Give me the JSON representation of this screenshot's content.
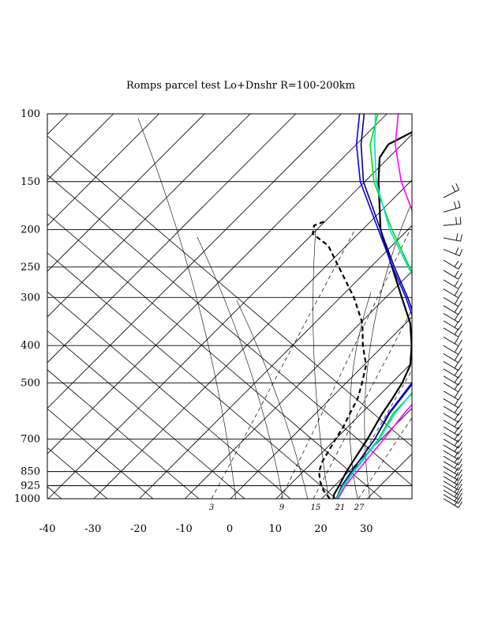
{
  "chart_data": {
    "type": "line",
    "title": "Romps parcel test Lo+Dnshr R=100-200km",
    "xlabel": "",
    "ylabel": "",
    "pressure_levels": [
      "100",
      "150",
      "200",
      "250",
      "300",
      "400",
      "500",
      "700",
      "850",
      "925",
      "1000"
    ],
    "temperature_ticks": [
      "-40",
      "-30",
      "-20",
      "-10",
      "0",
      "10",
      "20",
      "30"
    ],
    "mixing_ratio_labels": [
      "3",
      "9",
      "15",
      "21",
      "27"
    ],
    "pressure_range": [
      100,
      1000
    ],
    "temperature_range": [
      -40,
      40
    ],
    "grid": true,
    "series": [
      {
        "color": "#000000",
        "style": "solid",
        "width": 2.2,
        "points": [
          [
            1000,
            22.6
          ],
          [
            975,
            21.8
          ],
          [
            925,
            21.0
          ],
          [
            850,
            19.5
          ],
          [
            800,
            18.7
          ],
          [
            700,
            17.0
          ],
          [
            600,
            14.6
          ],
          [
            550,
            13.6
          ],
          [
            500,
            12.3
          ],
          [
            450,
            10.2
          ],
          [
            400,
            6.2
          ],
          [
            350,
            1.0
          ],
          [
            300,
            -6.5
          ],
          [
            250,
            -15.3
          ],
          [
            200,
            -26.0
          ],
          [
            150,
            -37.0
          ],
          [
            130,
            -42.0
          ],
          [
            120,
            -43.0
          ],
          [
            110,
            -40.0
          ],
          [
            100,
            -36.0
          ]
        ]
      },
      {
        "color": "#000000",
        "style": "dashed",
        "width": 2.2,
        "points": [
          [
            1000,
            21.8
          ],
          [
            950,
            18.5
          ],
          [
            900,
            15.8
          ],
          [
            850,
            13.5
          ],
          [
            800,
            12.0
          ],
          [
            700,
            10.0
          ],
          [
            650,
            9.0
          ],
          [
            600,
            7.5
          ],
          [
            550,
            6.0
          ],
          [
            500,
            3.5
          ],
          [
            450,
            0.5
          ],
          [
            400,
            -4.5
          ],
          [
            350,
            -9.5
          ],
          [
            300,
            -17.0
          ],
          [
            250,
            -27.0
          ],
          [
            220,
            -34.0
          ],
          [
            205,
            -40.0
          ],
          [
            195,
            -41.5
          ],
          [
            190,
            -40.0
          ]
        ]
      },
      {
        "color": "#0000ff",
        "style": "solid",
        "width": 1.6,
        "points": [
          [
            1000,
            23.2
          ],
          [
            925,
            21.6
          ],
          [
            850,
            20.6
          ],
          [
            700,
            18.6
          ],
          [
            600,
            16.0
          ],
          [
            500,
            14.4
          ],
          [
            450,
            11.6
          ],
          [
            400,
            7.4
          ],
          [
            350,
            2.0
          ],
          [
            300,
            -5.6
          ],
          [
            250,
            -15.2
          ],
          [
            200,
            -26.5
          ],
          [
            150,
            -41.0
          ],
          [
            120,
            -50.0
          ],
          [
            100,
            -56.0
          ]
        ]
      },
      {
        "color": "#000088",
        "style": "solid",
        "width": 1.6,
        "points": [
          [
            1000,
            23.2
          ],
          [
            925,
            21.6
          ],
          [
            850,
            20.6
          ],
          [
            700,
            18.6
          ],
          [
            600,
            16.2
          ],
          [
            500,
            14.7
          ],
          [
            450,
            12.0
          ],
          [
            400,
            7.8
          ],
          [
            350,
            2.4
          ],
          [
            300,
            -5.2
          ],
          [
            250,
            -14.8
          ],
          [
            200,
            -26.0
          ],
          [
            150,
            -40.3
          ],
          [
            120,
            -49.0
          ],
          [
            100,
            -55.0
          ]
        ]
      },
      {
        "color": "#00dd00",
        "style": "solid",
        "width": 1.6,
        "points": [
          [
            1000,
            23.2
          ],
          [
            925,
            21.8
          ],
          [
            850,
            21.0
          ],
          [
            700,
            19.4
          ],
          [
            600,
            17.0
          ],
          [
            550,
            16.8
          ],
          [
            500,
            17.0
          ],
          [
            450,
            15.2
          ],
          [
            400,
            11.5
          ],
          [
            350,
            6.0
          ],
          [
            300,
            -1.5
          ],
          [
            250,
            -11.5
          ],
          [
            200,
            -23.5
          ],
          [
            150,
            -38.0
          ],
          [
            120,
            -47.0
          ],
          [
            100,
            -52.0
          ]
        ]
      },
      {
        "color": "#00dddd",
        "style": "solid",
        "width": 1.6,
        "points": [
          [
            1000,
            23.4
          ],
          [
            925,
            22.0
          ],
          [
            850,
            21.2
          ],
          [
            700,
            19.6
          ],
          [
            600,
            17.4
          ],
          [
            500,
            16.2
          ],
          [
            450,
            14.6
          ],
          [
            400,
            10.6
          ],
          [
            350,
            5.6
          ],
          [
            300,
            -1.4
          ],
          [
            250,
            -11.8
          ],
          [
            200,
            -24.0
          ],
          [
            150,
            -37.5
          ],
          [
            120,
            -46.0
          ],
          [
            100,
            -52.5
          ]
        ]
      },
      {
        "color": "#ff00ff",
        "style": "solid",
        "width": 1.6,
        "points": [
          [
            1000,
            23.6
          ],
          [
            925,
            22.4
          ],
          [
            850,
            21.8
          ],
          [
            700,
            20.6
          ],
          [
            600,
            19.4
          ],
          [
            500,
            18.8
          ],
          [
            450,
            17.6
          ],
          [
            400,
            14.6
          ],
          [
            350,
            10.0
          ],
          [
            300,
            3.8
          ],
          [
            250,
            -5.5
          ],
          [
            200,
            -17.5
          ],
          [
            150,
            -32.0
          ],
          [
            120,
            -41.5
          ],
          [
            100,
            -47.5
          ]
        ]
      }
    ],
    "wind_barbs": [
      {
        "p": 165,
        "u": -16,
        "v": 8
      },
      {
        "p": 180,
        "u": -14,
        "v": 4
      },
      {
        "p": 195,
        "u": -12,
        "v": 1
      },
      {
        "p": 210,
        "u": -10,
        "v": -2
      },
      {
        "p": 225,
        "u": -10,
        "v": -4
      },
      {
        "p": 240,
        "u": -10,
        "v": -6
      },
      {
        "p": 255,
        "u": -10,
        "v": -6
      },
      {
        "p": 270,
        "u": -10,
        "v": -6
      },
      {
        "p": 285,
        "u": -10,
        "v": -6
      },
      {
        "p": 300,
        "u": -10,
        "v": -6
      },
      {
        "p": 315,
        "u": -10,
        "v": -6
      },
      {
        "p": 330,
        "u": -10,
        "v": -6
      },
      {
        "p": 345,
        "u": -10,
        "v": -6
      },
      {
        "p": 360,
        "u": -10,
        "v": -6
      },
      {
        "p": 380,
        "u": -10,
        "v": -6
      },
      {
        "p": 400,
        "u": -10,
        "v": -6
      },
      {
        "p": 420,
        "u": -10,
        "v": -6
      },
      {
        "p": 440,
        "u": -10,
        "v": -6
      },
      {
        "p": 460,
        "u": -10,
        "v": -6
      },
      {
        "p": 480,
        "u": -10,
        "v": -6
      },
      {
        "p": 500,
        "u": -10,
        "v": -6
      },
      {
        "p": 525,
        "u": -10,
        "v": -6
      },
      {
        "p": 550,
        "u": -10,
        "v": -6
      },
      {
        "p": 575,
        "u": -10,
        "v": -6
      },
      {
        "p": 600,
        "u": -10,
        "v": -6
      },
      {
        "p": 625,
        "u": -10,
        "v": -6
      },
      {
        "p": 650,
        "u": -10,
        "v": -6
      },
      {
        "p": 675,
        "u": -10,
        "v": -6
      },
      {
        "p": 700,
        "u": -10,
        "v": -6
      },
      {
        "p": 725,
        "u": -10,
        "v": -6
      },
      {
        "p": 750,
        "u": -10,
        "v": -6
      },
      {
        "p": 775,
        "u": -10,
        "v": -6
      },
      {
        "p": 800,
        "u": -10,
        "v": -6
      },
      {
        "p": 825,
        "u": -10,
        "v": -6
      },
      {
        "p": 850,
        "u": -10,
        "v": -6
      },
      {
        "p": 875,
        "u": -10,
        "v": -6
      },
      {
        "p": 900,
        "u": -10,
        "v": -6
      },
      {
        "p": 925,
        "u": -10,
        "v": -6
      },
      {
        "p": 950,
        "u": -10,
        "v": -6
      },
      {
        "p": 975,
        "u": -10,
        "v": -6
      },
      {
        "p": 1000,
        "u": -10,
        "v": -6
      }
    ]
  }
}
